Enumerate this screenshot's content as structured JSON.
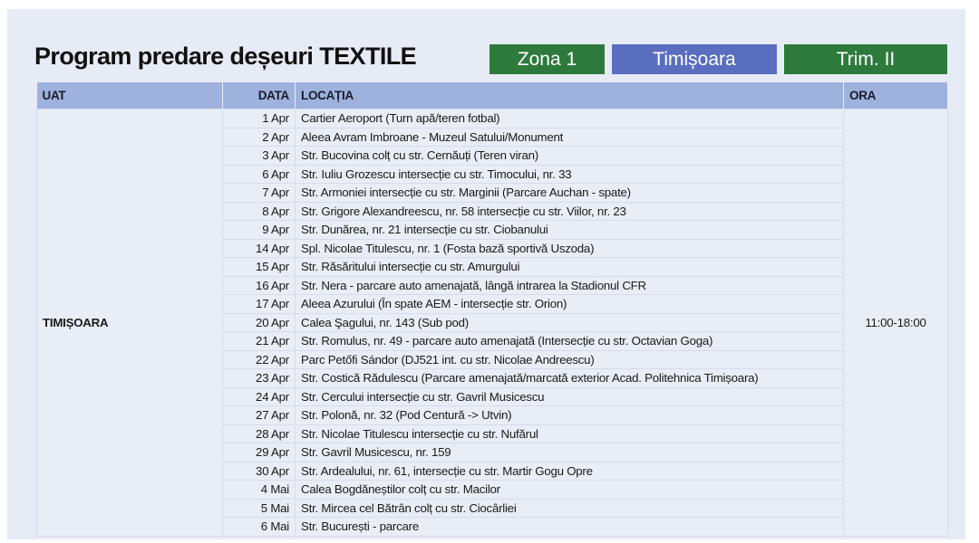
{
  "title": "Program predare deșeuri TEXTILE",
  "badges": {
    "zone": "Zona 1",
    "city": "Timișoara",
    "quarter": "Trim. II"
  },
  "colors": {
    "green": "#2e7a3c",
    "blue": "#5a6ebf",
    "header": "#9fb2de",
    "background": "#e7ebf5"
  },
  "table": {
    "headers": {
      "uat": "UAT",
      "data": "DATA",
      "locatia": "LOCAȚIA",
      "ora": "ORA"
    },
    "uat": "TIMIȘOARA",
    "ora": "11:00-18:00",
    "rows": [
      {
        "date": "1 Apr",
        "location": "Cartier Aeroport (Turn apă/teren fotbal)"
      },
      {
        "date": "2 Apr",
        "location": "Aleea Avram Imbroane - Muzeul Satului/Monument"
      },
      {
        "date": "3 Apr",
        "location": "Str. Bucovina colț cu str. Cernăuți (Teren viran)"
      },
      {
        "date": "6 Apr",
        "location": "Str. Iuliu Grozescu intersecție cu str. Timocului, nr. 33"
      },
      {
        "date": "7 Apr",
        "location": "Str. Armoniei intersecție cu str. Marginii (Parcare Auchan - spate)"
      },
      {
        "date": "8 Apr",
        "location": "Str. Grigore Alexandreescu, nr. 58 intersecție cu str. Viilor, nr. 23"
      },
      {
        "date": "9 Apr",
        "location": "Str. Dunărea, nr. 21 intersecție cu str. Ciobanului"
      },
      {
        "date": "14 Apr",
        "location": "Spl. Nicolae Titulescu, nr. 1 (Fosta bază sportivă Uszoda)"
      },
      {
        "date": "15 Apr",
        "location": "Str. Răsăritului intersecție cu str. Amurgului"
      },
      {
        "date": "16 Apr",
        "location": "Str. Nera - parcare auto amenajată, lângă intrarea la Stadionul CFR"
      },
      {
        "date": "17 Apr",
        "location": "Aleea Azurului (În spate AEM - intersecție str. Orion)"
      },
      {
        "date": "20 Apr",
        "location": "Calea Şagului, nr. 143 (Sub pod)"
      },
      {
        "date": "21 Apr",
        "location": "Str. Romulus, nr. 49 - parcare auto amenajată (Intersecție cu str. Octavian Goga)"
      },
      {
        "date": "22 Apr",
        "location": "Parc Petőfi Sándor (DJ521 int. cu str. Nicolae Andreescu)"
      },
      {
        "date": "23 Apr",
        "location": "Str. Costică Rădulescu (Parcare amenajată/marcată exterior Acad. Politehnica Timișoara)"
      },
      {
        "date": "24 Apr",
        "location": "Str. Cercului intersecție cu str. Gavril Musicescu"
      },
      {
        "date": "27 Apr",
        "location": "Str. Polonă, nr. 32 (Pod Centură -> Utvin)"
      },
      {
        "date": "28 Apr",
        "location": "Str. Nicolae Titulescu intersecție cu str. Nufărul"
      },
      {
        "date": "29 Apr",
        "location": "Str. Gavril Musicescu, nr. 159"
      },
      {
        "date": "30 Apr",
        "location": "Str. Ardealului, nr. 61, intersecție cu str. Martir Gogu Opre"
      },
      {
        "date": "4 Mai",
        "location": "Calea Bogdăneștilor colț cu str. Macilor"
      },
      {
        "date": "5 Mai",
        "location": "Str. Mircea cel Bătrân colț cu str. Ciocârliei"
      },
      {
        "date": "6 Mai",
        "location": "Str. București - parcare"
      }
    ]
  }
}
